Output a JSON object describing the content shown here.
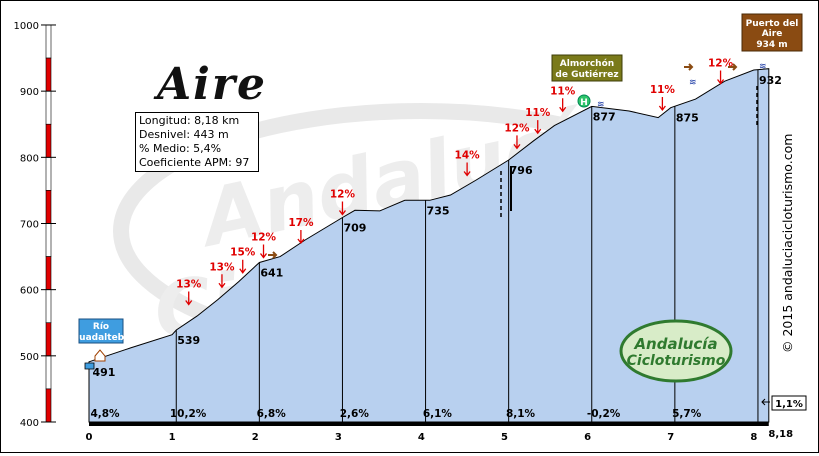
{
  "chart_data": {
    "type": "area",
    "title": "Aire",
    "xlim": [
      0,
      8.18
    ],
    "ylim": [
      400,
      1000
    ],
    "x_ticks": [
      "0",
      "1",
      "2",
      "3",
      "4",
      "5",
      "6",
      "7",
      "8"
    ],
    "x_end_label": "8,18",
    "y_ticks": [
      "400",
      "500",
      "600",
      "700",
      "800",
      "900",
      "1000"
    ],
    "profile": [
      [
        0,
        491
      ],
      [
        0.5,
        512
      ],
      [
        1.0,
        532
      ],
      [
        1.05,
        539
      ],
      [
        1.3,
        560
      ],
      [
        1.55,
        585
      ],
      [
        1.8,
        612
      ],
      [
        2.05,
        641
      ],
      [
        2.3,
        650
      ],
      [
        2.6,
        675
      ],
      [
        3.05,
        709
      ],
      [
        3.2,
        720
      ],
      [
        3.5,
        719
      ],
      [
        3.8,
        735
      ],
      [
        4.1,
        735
      ],
      [
        4.35,
        743
      ],
      [
        4.65,
        765
      ],
      [
        5.05,
        796
      ],
      [
        5.35,
        825
      ],
      [
        5.6,
        848
      ],
      [
        6.05,
        877
      ],
      [
        6.5,
        870
      ],
      [
        6.85,
        860
      ],
      [
        7.0,
        875
      ],
      [
        7.3,
        888
      ],
      [
        7.65,
        915
      ],
      [
        8.0,
        932
      ],
      [
        8.18,
        934
      ]
    ],
    "point_labels": [
      {
        "x": 0.03,
        "y": 491,
        "text": "491"
      },
      {
        "x": 1.05,
        "y": 539,
        "text": "539"
      },
      {
        "x": 2.05,
        "y": 641,
        "text": "641"
      },
      {
        "x": 3.05,
        "y": 709,
        "text": "709"
      },
      {
        "x": 4.05,
        "y": 735,
        "text": "735"
      },
      {
        "x": 5.05,
        "y": 796,
        "text": "796"
      },
      {
        "x": 6.05,
        "y": 877,
        "text": "877"
      },
      {
        "x": 7.05,
        "y": 875,
        "text": "875"
      },
      {
        "x": 8.05,
        "y": 932,
        "text": "932"
      }
    ],
    "km_gradients": [
      {
        "km": 0,
        "text": "4,8%"
      },
      {
        "km": 1,
        "text": "10,2%"
      },
      {
        "km": 2,
        "text": "6,8%"
      },
      {
        "km": 3,
        "text": "2,6%"
      },
      {
        "km": 4,
        "text": "6,1%"
      },
      {
        "km": 5,
        "text": "8,1%"
      },
      {
        "km": 6,
        "text": "-0,2%"
      },
      {
        "km": 7,
        "text": "5,7%"
      }
    ],
    "last_segment_gradient": "1,1%",
    "slope_markers": [
      {
        "x": 1.2,
        "y": 567,
        "text": "13%"
      },
      {
        "x": 1.6,
        "y": 593,
        "text": "13%"
      },
      {
        "x": 1.85,
        "y": 615,
        "text": "15%"
      },
      {
        "x": 2.1,
        "y": 638,
        "text": "12%"
      },
      {
        "x": 2.55,
        "y": 660,
        "text": "17%"
      },
      {
        "x": 3.05,
        "y": 703,
        "text": "12%"
      },
      {
        "x": 4.55,
        "y": 762,
        "text": "14%"
      },
      {
        "x": 5.15,
        "y": 803,
        "text": "12%"
      },
      {
        "x": 5.4,
        "y": 826,
        "text": "11%"
      },
      {
        "x": 5.7,
        "y": 859,
        "text": "11%"
      },
      {
        "x": 6.9,
        "y": 861,
        "text": "11%"
      },
      {
        "x": 7.6,
        "y": 901,
        "text": "12%"
      }
    ],
    "y_axis_band_colors": [
      "#e00000",
      "#ffffff"
    ],
    "fill_color": "#b8d0ef",
    "marker_color": "#e00000"
  },
  "info_box": {
    "length": "Longitud: 8,18 km",
    "climb": "Desnivel: 443 m",
    "average": "% Medio: 5,4%",
    "coefficient": "Coeficiente APM: 97"
  },
  "start_label": {
    "line1": "Río",
    "line2": "Guadalteba"
  },
  "mid_label": {
    "line1": "Almorchón",
    "line2": "de Gutiérrez"
  },
  "top_label": {
    "line1": "Puerto del",
    "line2": "Aire",
    "line3": "934 m"
  },
  "mid_icon_letter": "H",
  "watermark": {
    "line1": "Andalucía",
    "line2": "Cicloturismo"
  },
  "copyright": "© 2015 andaluciacicloturismo.com",
  "colors": {
    "start_label_bg": "#3f9de0",
    "mid_label_bg": "#7a7a1a",
    "top_label_bg": "#8a4b12",
    "stamp_green": "#2f7a2f"
  }
}
